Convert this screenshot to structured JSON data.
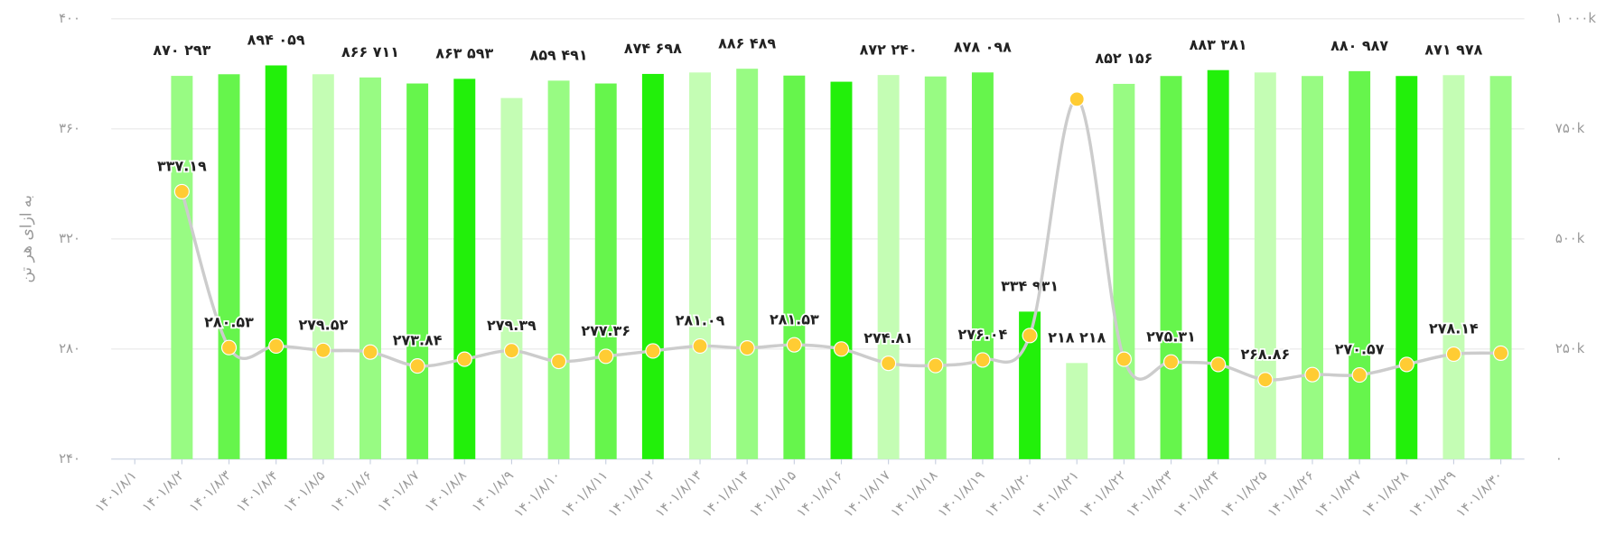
{
  "chart_data": {
    "type": "combo",
    "y_axis_label": "به ازای هر تن",
    "categories": [
      "۱۴۰۱/۸/۱",
      "۱۴۰۱/۸/۲",
      "۱۴۰۱/۸/۳",
      "۱۴۰۱/۸/۴",
      "۱۴۰۱/۸/۵",
      "۱۴۰۱/۸/۶",
      "۱۴۰۱/۸/۷",
      "۱۴۰۱/۸/۸",
      "۱۴۰۱/۸/۹",
      "۱۴۰۱/۸/۱۰",
      "۱۴۰۱/۸/۱۱",
      "۱۴۰۱/۸/۱۲",
      "۱۴۰۱/۸/۱۳",
      "۱۴۰۱/۸/۱۴",
      "۱۴۰۱/۸/۱۵",
      "۱۴۰۱/۸/۱۶",
      "۱۴۰۱/۸/۱۷",
      "۱۴۰۱/۸/۱۸",
      "۱۴۰۱/۸/۱۹",
      "۱۴۰۱/۸/۲۰",
      "۱۴۰۱/۸/۲۱",
      "۱۴۰۱/۸/۲۲",
      "۱۴۰۱/۸/۲۳",
      "۱۴۰۱/۸/۲۴",
      "۱۴۰۱/۸/۲۵",
      "۱۴۰۱/۸/۲۶",
      "۱۴۰۱/۸/۲۷",
      "۱۴۰۱/۸/۲۸",
      "۱۴۰۱/۸/۲۹",
      "۱۴۰۱/۸/۳۰"
    ],
    "ylim": [
      240,
      400
    ],
    "yticks": [
      {
        "value": 240,
        "label": "۲۴۰"
      },
      {
        "value": 280,
        "label": "۲۸۰"
      },
      {
        "value": 320,
        "label": "۳۲۰"
      },
      {
        "value": 360,
        "label": "۳۶۰"
      },
      {
        "value": 400,
        "label": "۴۰۰"
      }
    ],
    "y2lim": [
      0,
      1000000
    ],
    "y2ticks": [
      {
        "value": 0,
        "label": "۰"
      },
      {
        "value": 250000,
        "label": "۲۵۰k"
      },
      {
        "value": 500000,
        "label": "۵۰۰k"
      },
      {
        "value": 750000,
        "label": "۷۵۰k"
      },
      {
        "value": 1000000,
        "label": "۱ ۰۰۰k"
      }
    ],
    "grid": true,
    "series": [
      {
        "type": "bar",
        "axis": "y2",
        "values": [
          null,
          870293,
          874000,
          894059,
          874000,
          866711,
          853000,
          863593,
          820000,
          859491,
          853000,
          874698,
          878000,
          886489,
          871000,
          857000,
          872240,
          869000,
          878098,
          334931,
          218218,
          852156,
          870000,
          883381,
          878000,
          870000,
          880987,
          870000,
          871978,
          870000
        ],
        "value_labels": [
          null,
          "۸۷۰ ۲۹۳",
          null,
          "۸۹۴ ۰۵۹",
          null,
          "۸۶۶ ۷۱۱",
          null,
          "۸۶۳ ۵۹۳",
          null,
          "۸۵۹ ۴۹۱",
          null,
          "۸۷۴ ۶۹۸",
          null,
          "۸۸۶ ۴۸۹",
          null,
          null,
          "۸۷۲ ۲۴۰",
          null,
          "۸۷۸ ۰۹۸",
          "۳۳۴ ۹۳۱",
          "۲۱۸ ۲۱۸",
          "۸۵۲ ۱۵۶",
          null,
          "۸۸۳ ۳۸۱",
          null,
          null,
          "۸۸۰ ۹۸۷",
          null,
          "۸۷۱ ۹۷۸",
          null
        ],
        "colors": [
          null,
          "#98fb83",
          "#66f54c",
          "#22f00a",
          "#c4fdb4",
          "#98fb83",
          "#66f54c",
          "#22f00a",
          "#c4fdb4",
          "#98fb83",
          "#66f54c",
          "#22f00a",
          "#c4fdb4",
          "#98fb83",
          "#66f54c",
          "#22f00a",
          "#c4fdb4",
          "#98fb83",
          "#66f54c",
          "#22f00a",
          "#c4fdb4",
          "#98fb83",
          "#66f54c",
          "#22f00a",
          "#c4fdb4",
          "#98fb83",
          "#66f54c",
          "#22f00a",
          "#c4fdb4",
          "#98fb83"
        ]
      },
      {
        "type": "line",
        "axis": "y",
        "color": "#cccccc",
        "marker_color": "#ffcc33",
        "values": [
          null,
          337.19,
          280.53,
          281.1,
          279.52,
          278.9,
          273.84,
          276.3,
          279.39,
          275.5,
          277.36,
          279.3,
          281.09,
          280.4,
          281.53,
          280.0,
          274.81,
          274.0,
          276.04,
          284.9,
          370.8,
          276.3,
          275.31,
          274.4,
          268.86,
          270.7,
          270.57,
          274.4,
          278.14,
          278.5
        ],
        "value_labels": [
          null,
          "۳۳۷.۱۹",
          "۲۸۰.۵۳",
          null,
          "۲۷۹.۵۲",
          null,
          "۲۷۳.۸۴",
          null,
          "۲۷۹.۳۹",
          null,
          "۲۷۷.۳۶",
          null,
          "۲۸۱.۰۹",
          null,
          "۲۸۱.۵۳",
          null,
          "۲۷۴.۸۱",
          null,
          "۲۷۶.۰۴",
          null,
          null,
          null,
          "۲۷۵.۳۱",
          null,
          "۲۶۸.۸۶",
          null,
          "۲۷۰.۵۷",
          null,
          "۲۷۸.۱۴",
          null
        ]
      }
    ]
  }
}
